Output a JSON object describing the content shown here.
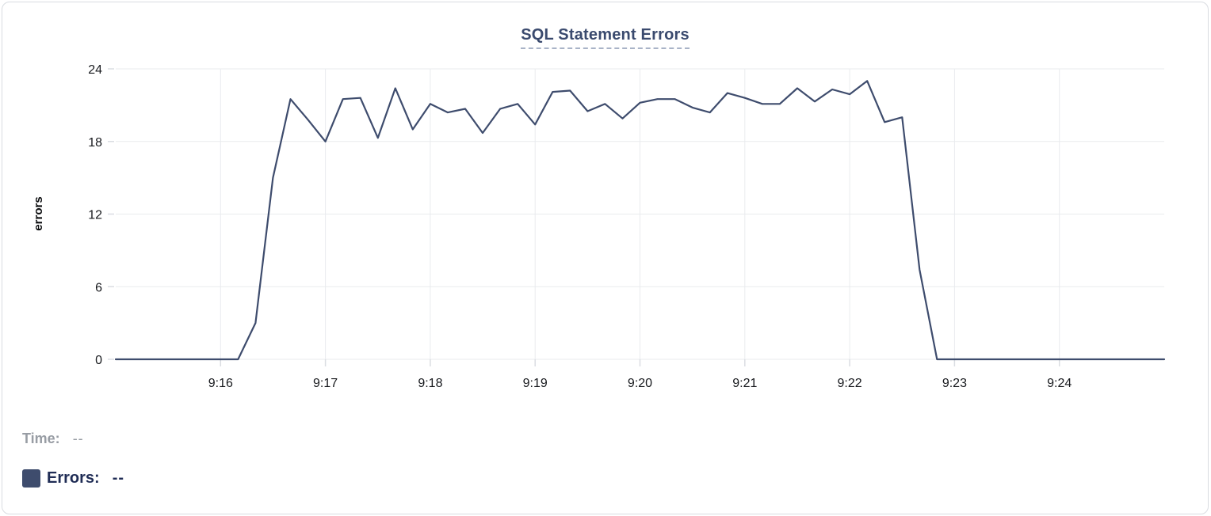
{
  "chart_data": {
    "type": "line",
    "title": "SQL Statement Errors",
    "ylabel": "errors",
    "grid": true,
    "x_axis": {
      "start_time": "9:15:00",
      "end_time": "9:25:00",
      "interval_seconds": 10,
      "tick_labels": [
        "9:16",
        "9:17",
        "9:18",
        "9:19",
        "9:20",
        "9:21",
        "9:22",
        "9:23",
        "9:24"
      ],
      "tick_seconds": [
        60,
        120,
        180,
        240,
        300,
        360,
        420,
        480,
        540
      ]
    },
    "y_axis": {
      "min": 0,
      "max": 24,
      "ticks": [
        0,
        6,
        12,
        18,
        24
      ]
    },
    "series": [
      {
        "name": "Errors",
        "color": "#3e4c6d",
        "values": [
          0,
          0,
          0,
          0,
          0,
          0,
          0,
          0,
          3,
          15,
          21.5,
          19.8,
          18,
          21.5,
          21.6,
          18.3,
          22.4,
          19,
          21.1,
          20.4,
          20.7,
          18.7,
          20.7,
          21.1,
          19.4,
          22.1,
          22.2,
          20.5,
          21.1,
          19.9,
          21.2,
          21.5,
          21.5,
          20.8,
          20.4,
          22,
          21.6,
          21.1,
          21.1,
          22.4,
          21.3,
          22.3,
          21.9,
          23,
          19.6,
          20,
          7.4,
          0,
          0,
          0,
          0,
          0,
          0,
          0,
          0,
          0,
          0,
          0,
          0,
          0,
          0
        ]
      }
    ],
    "tooltip_readout": {
      "time_label": "Time:",
      "time_value": "--",
      "errors_label": "Errors:",
      "errors_value": "--",
      "errors_swatch_color": "#3e4c6d"
    }
  },
  "colors": {
    "gridline": "#e9ebee",
    "card_border": "#d9dce1",
    "title": "#3a4a6e",
    "time_text": "#989da4",
    "errors_text": "#1f2c55"
  }
}
